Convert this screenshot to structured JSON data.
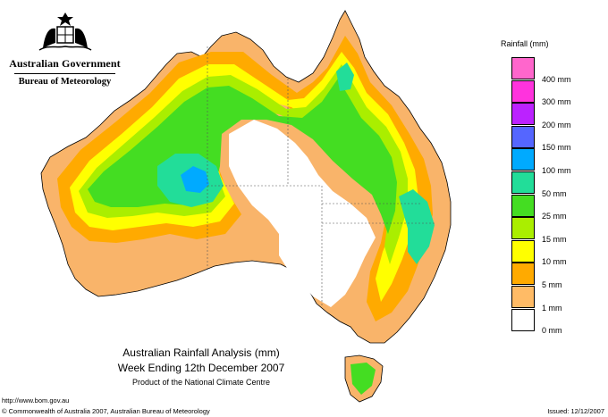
{
  "header": {
    "government": "Australian Government",
    "bureau": "Bureau of Meteorology"
  },
  "map": {
    "title_line1": "Australian Rainfall Analysis (mm)",
    "title_line2": "Week Ending 12th December 2007",
    "credit": "Product of the National Climate Centre"
  },
  "legend": {
    "title": "Rainfall (mm)",
    "items": [
      {
        "label": "",
        "color": "#ff66cc"
      },
      {
        "label": "400 mm",
        "color": "#ff33dd"
      },
      {
        "label": "300 mm",
        "color": "#bb22ff"
      },
      {
        "label": "200 mm",
        "color": "#5566ff"
      },
      {
        "label": "150 mm",
        "color": "#00aaff"
      },
      {
        "label": "100 mm",
        "color": "#22dd99"
      },
      {
        "label": "50 mm",
        "color": "#44dd22"
      },
      {
        "label": "25 mm",
        "color": "#aaee00"
      },
      {
        "label": "15 mm",
        "color": "#ffff00"
      },
      {
        "label": "10 mm",
        "color": "#ffaa00"
      },
      {
        "label": "5 mm",
        "color": "#ffbb66"
      },
      {
        "label": "1 mm",
        "color": "#ffffff"
      },
      {
        "label": "0 mm",
        "color": ""
      }
    ]
  },
  "footer": {
    "url": "http://www.bom.gov.au",
    "copyright": "© Commonwealth of Australia 2007, Australian Bureau of Meteorology",
    "issued": "Issued: 12/12/2007"
  }
}
